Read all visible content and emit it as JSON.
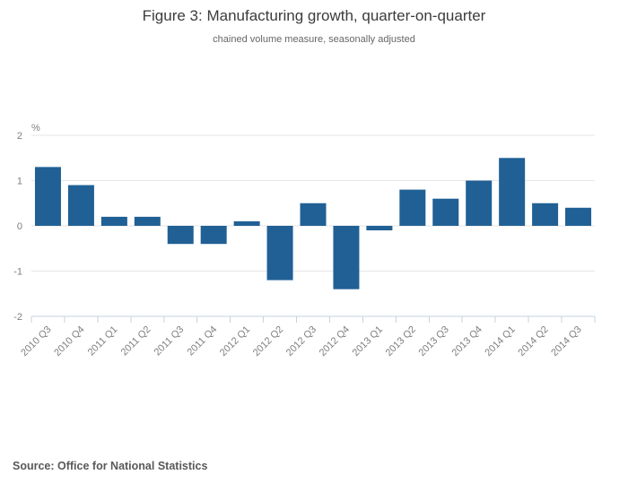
{
  "header": {
    "title": "Figure 3: Manufacturing growth, quarter-on-quarter",
    "subtitle": "chained volume measure, seasonally adjusted"
  },
  "footer": {
    "source": "Source: Office for National Statistics"
  },
  "chart_data": {
    "type": "bar",
    "title": "Figure 3: Manufacturing growth, quarter-on-quarter",
    "subtitle": "chained volume measure, seasonally adjusted",
    "unit_label": "%",
    "categories": [
      "2010 Q3",
      "2010 Q4",
      "2011 Q1",
      "2011 Q2",
      "2011 Q3",
      "2011 Q4",
      "2012 Q1",
      "2012 Q2",
      "2012 Q3",
      "2012 Q4",
      "2013 Q1",
      "2013 Q2",
      "2013 Q3",
      "2013 Q4",
      "2014 Q1",
      "2014 Q2",
      "2014 Q3"
    ],
    "values": [
      1.3,
      0.9,
      0.2,
      0.2,
      -0.4,
      -0.4,
      0.1,
      -1.2,
      0.5,
      -1.4,
      -0.1,
      0.8,
      0.6,
      1.0,
      1.5,
      0.5,
      0.4
    ],
    "xlabel": "",
    "ylabel": "%",
    "ylim": [
      -2,
      2
    ],
    "yticks": [
      2,
      1,
      0,
      -1,
      -2
    ],
    "grid": true,
    "legend": "none",
    "colors": {
      "bar": "#206095",
      "gridline": "#e6e6e6",
      "axis_line": "#c6d3e2",
      "tick_label": "#7f7f7f",
      "unit_label": "#7f7f7f"
    }
  }
}
